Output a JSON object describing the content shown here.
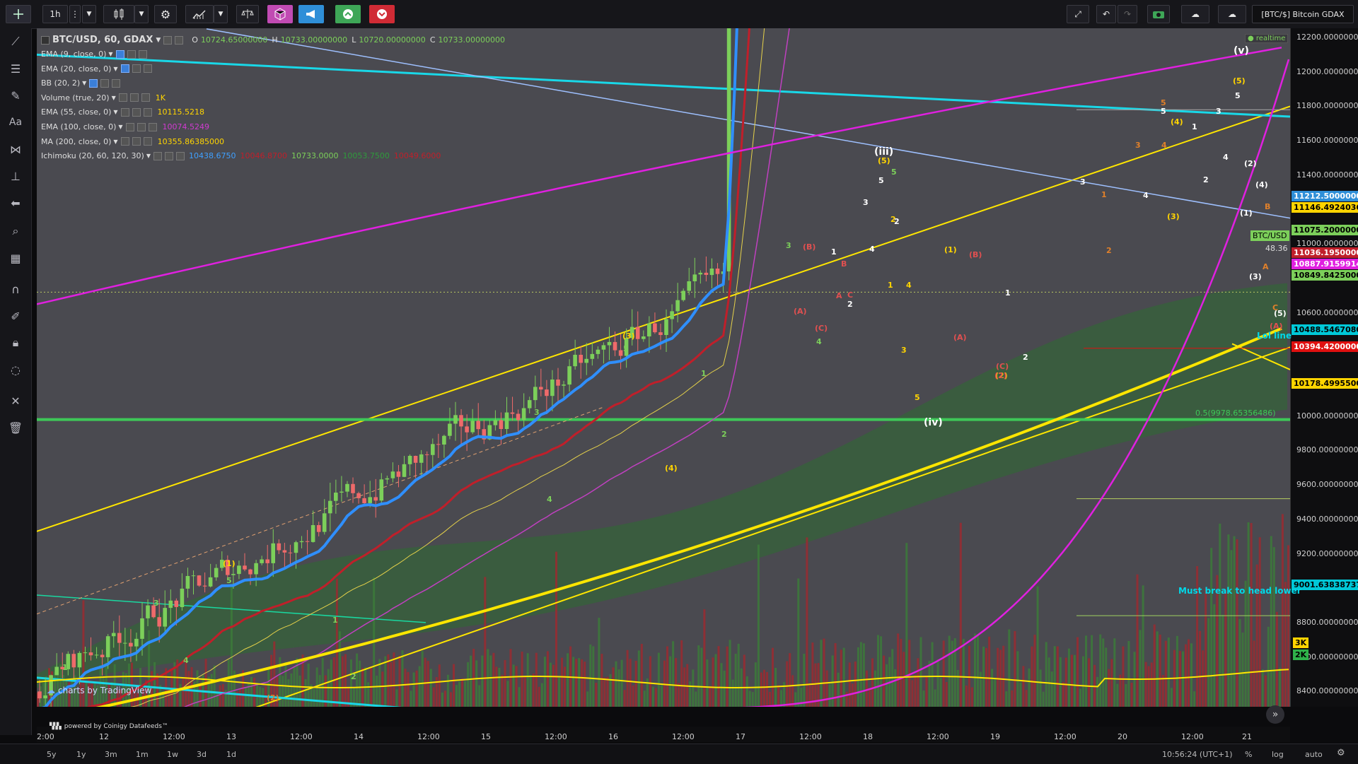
{
  "toolbar": {
    "interval": "1h",
    "symbol_box": "[BTC/$] Bitcoin GDAX",
    "colors": {
      "pink": "#c14bb3",
      "blue": "#2f8fd8",
      "green": "#3ea657",
      "red": "#d02b35"
    }
  },
  "legend": {
    "title": "BTC/USD, 60, GDAX",
    "o_label": "O",
    "o": "10724.65000000",
    "h_label": "H",
    "h": "10733.00000000",
    "l_label": "L",
    "l": "10720.00000000",
    "c_label": "C",
    "c": "10733.00000000",
    "indicators": [
      {
        "name": "EMA (9, close, 0)",
        "value": "",
        "color": "#3fa0ff"
      },
      {
        "name": "EMA (20, close, 0)",
        "value": "",
        "color": "#ffd400"
      },
      {
        "name": "BB (20, 2)",
        "value": "",
        "color": "#aaaaaa"
      },
      {
        "name": "Volume (true, 20)",
        "value": "1K",
        "color": "#ffd400"
      },
      {
        "name": "EMA (55, close, 0)",
        "value": "10115.5218",
        "color": "#ffd400"
      },
      {
        "name": "EMA (100, close, 0)",
        "value": "10074.5249",
        "color": "#d03bd0"
      },
      {
        "name": "MA (200, close, 0)",
        "value": "10355.86385000",
        "color": "#ffd400"
      }
    ],
    "ichimoku": {
      "name": "Ichimoku (20, 60, 120, 30)",
      "v1": "10438.6750",
      "v2": "10046.8700",
      "v3": "10733.0000",
      "v4": "10053.7500",
      "v5": "10049.6000"
    }
  },
  "price_axis": {
    "labels": [
      "12200.00000000",
      "12000.00000000",
      "11800.00000000",
      "11600.00000000",
      "11400.00000000",
      "11200.00000000",
      "11000.00000000",
      "10800.00000000",
      "10600.00000000",
      "10400.00000000",
      "10200.00000000",
      "10000.00000000",
      "9800.00000000",
      "9600.00000000",
      "9400.00000000",
      "9200.00000000",
      "9000.00000000",
      "8800.00000000",
      "8600.00000000",
      "8400.00000000"
    ],
    "tags": [
      {
        "text": "11212.50000000",
        "bg": "#2f8fd8",
        "fg": "#ffffff"
      },
      {
        "text": "11146.49240361",
        "bg": "#ffd400",
        "fg": "#000000"
      },
      {
        "text": "11075.20000000",
        "bg": "#7ccf5a",
        "fg": "#000000"
      },
      {
        "text": "11036.19500000",
        "bg": "#c01f2a",
        "fg": "#ffffff"
      },
      {
        "text": "10887.91599143",
        "bg": "#e020e0",
        "fg": "#ffffff"
      },
      {
        "text": "10849.84250000",
        "bg": "#7ccf5a",
        "fg": "#000000"
      },
      {
        "text": "10488.54670804",
        "bg": "#00c8d8",
        "fg": "#000000"
      },
      {
        "text": "10394.42000000",
        "bg": "#e01010",
        "fg": "#ffffff"
      },
      {
        "text": "10178.49955000",
        "bg": "#ffd400",
        "fg": "#000000"
      },
      {
        "text": "9001.63838737",
        "bg": "#00c8d8",
        "fg": "#000000"
      },
      {
        "text": "3K",
        "bg": "#ffd400",
        "fg": "#000000"
      },
      {
        "text": "2K",
        "bg": "#2fb34a",
        "fg": "#000000"
      }
    ],
    "small_tags": [
      {
        "text": "BTC/USD"
      },
      {
        "text": "48.36"
      }
    ]
  },
  "time_axis": [
    "2:00",
    "12",
    "12:00",
    "13",
    "12:00",
    "14",
    "12:00",
    "15",
    "12:00",
    "16",
    "12:00",
    "17",
    "12:00",
    "18",
    "12:00",
    "19",
    "12:00",
    "20",
    "12:00",
    "21"
  ],
  "bottom": {
    "ranges": [
      "5y",
      "1y",
      "3m",
      "1m",
      "1w",
      "3d",
      "1d"
    ],
    "clock": "10:56:24 (UTC+1)",
    "percent": "%",
    "log": "log",
    "auto": "auto"
  },
  "annotations": {
    "realtime": "● realtime",
    "lol_line": "Lol line",
    "must_break": "Must break to head lower",
    "fib": "0.5(9978.65356486)",
    "credit_tv": "charts by TradingView",
    "credit_coinigy": "powered by Coinigy Datafeeds™",
    "wave_iii": "(iii)",
    "wave_iv": "(iv)",
    "wave_v": "(v)"
  },
  "wave_labels": [
    {
      "t": "(1)",
      "c": "#ffd400"
    },
    {
      "t": "5",
      "c": "#7ccf5a"
    },
    {
      "t": "3",
      "c": "#7ccf5a"
    },
    {
      "t": "1",
      "c": "#7ccf5a"
    },
    {
      "t": "4",
      "c": "#7ccf5a"
    },
    {
      "t": "2",
      "c": "#7ccf5a"
    },
    {
      "t": "(2)",
      "c": "#e0802a"
    },
    {
      "t": "1",
      "c": "#7ccf5a"
    },
    {
      "t": "2",
      "c": "#7ccf5a"
    },
    {
      "t": "(3)",
      "c": "#ffd400"
    },
    {
      "t": "5",
      "c": "#7ccf5a"
    },
    {
      "t": "3",
      "c": "#7ccf5a"
    },
    {
      "t": "4",
      "c": "#7ccf5a"
    },
    {
      "t": "(4)",
      "c": "#ffd400"
    },
    {
      "t": "1",
      "c": "#7ccf5a"
    },
    {
      "t": "2",
      "c": "#7ccf5a"
    },
    {
      "t": "3",
      "c": "#7ccf5a"
    },
    {
      "t": "(B)",
      "c": "#e05050"
    },
    {
      "t": "(A)",
      "c": "#e05050"
    },
    {
      "t": "(C)",
      "c": "#e05050"
    },
    {
      "t": "4",
      "c": "#7ccf5a"
    },
    {
      "t": "1",
      "c": "#ffffff"
    },
    {
      "t": "B",
      "c": "#e05050"
    },
    {
      "t": "A",
      "c": "#e05050"
    },
    {
      "t": "C",
      "c": "#e05050"
    },
    {
      "t": "2",
      "c": "#ffffff"
    },
    {
      "t": "(5)",
      "c": "#ffd400"
    },
    {
      "t": "5",
      "c": "#7ccf5a"
    },
    {
      "t": "5",
      "c": "#ffffff"
    },
    {
      "t": "3",
      "c": "#ffffff"
    },
    {
      "t": "4",
      "c": "#ffffff"
    },
    {
      "t": "2",
      "c": "#ffd400"
    },
    {
      "t": "1",
      "c": "#ffd400"
    },
    {
      "t": "4",
      "c": "#ffd400"
    },
    {
      "t": "3",
      "c": "#ffd400"
    },
    {
      "t": "5",
      "c": "#ffd400"
    },
    {
      "t": "(1)",
      "c": "#ffd400"
    },
    {
      "t": "(B)",
      "c": "#e05050"
    },
    {
      "t": "(A)",
      "c": "#e05050"
    },
    {
      "t": "1",
      "c": "#ffffff"
    },
    {
      "t": "2",
      "c": "#ffffff"
    },
    {
      "t": "(C)",
      "c": "#e05050"
    },
    {
      "t": "(2)",
      "c": "#ffd400"
    },
    {
      "t": "3",
      "c": "#ffffff"
    },
    {
      "t": "1",
      "c": "#e0802a"
    },
    {
      "t": "2",
      "c": "#e0802a"
    },
    {
      "t": "3",
      "c": "#e0802a"
    },
    {
      "t": "4",
      "c": "#e0802a"
    },
    {
      "t": "5",
      "c": "#e0802a"
    },
    {
      "t": "(3)",
      "c": "#ffd400"
    },
    {
      "t": "5",
      "c": "#ffffff"
    },
    {
      "t": "(4)",
      "c": "#ffd400"
    },
    {
      "t": "4",
      "c": "#ffffff"
    },
    {
      "t": "1",
      "c": "#ffffff"
    },
    {
      "t": "2",
      "c": "#ffffff"
    },
    {
      "t": "3",
      "c": "#ffffff"
    },
    {
      "t": "4",
      "c": "#ffffff"
    },
    {
      "t": "(5)",
      "c": "#ffd400"
    },
    {
      "t": "5",
      "c": "#ffffff"
    },
    {
      "t": "(2)",
      "c": "#ffffff"
    },
    {
      "t": "(4)",
      "c": "#ffffff"
    },
    {
      "t": "(1)",
      "c": "#ffffff"
    },
    {
      "t": "B",
      "c": "#e0802a"
    },
    {
      "t": "A",
      "c": "#e0802a"
    },
    {
      "t": "(3)",
      "c": "#ffffff"
    },
    {
      "t": "C",
      "c": "#e0802a"
    },
    {
      "t": "(5)",
      "c": "#ffffff"
    },
    {
      "t": "(A)",
      "c": "#e05050"
    },
    {
      "t": "2",
      "c": "#ffffff"
    },
    {
      "t": "(2)",
      "c": "#e05050"
    }
  ]
}
